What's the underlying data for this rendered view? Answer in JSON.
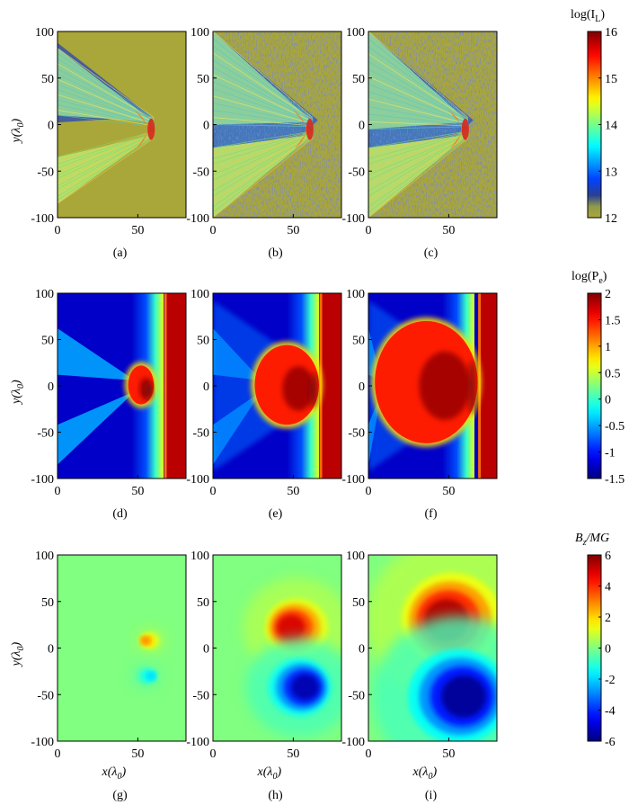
{
  "chart_data": [
    {
      "type": "heatmap",
      "row_label": "log(I_L)",
      "colorbar": {
        "label": "log(I_L)",
        "label_base": "log(I",
        "label_sub": "L",
        "range": [
          12,
          16
        ],
        "ticks": [
          "12",
          "13",
          "14",
          "15",
          "16"
        ],
        "colormap": "jet-with-olive-low"
      },
      "x": {
        "range": [
          0,
          80
        ],
        "ticks": [
          "0",
          "50"
        ],
        "label": ""
      },
      "y": {
        "range": [
          -100,
          100
        ],
        "ticks": [
          "100",
          "50",
          "0",
          "-50",
          "-100"
        ],
        "label": "y(λ0)"
      },
      "panels": [
        {
          "id": "(a)",
          "pattern": "two-beam-cone",
          "tip_x": 60
        },
        {
          "id": "(b)",
          "pattern": "two-beam-cone-speckled",
          "tip_x": 62
        },
        {
          "id": "(c)",
          "pattern": "two-beam-cone-speckled",
          "tip_x": 62
        }
      ]
    },
    {
      "type": "heatmap",
      "row_label": "log(P_e)",
      "colorbar": {
        "label": "log(P_e)",
        "label_base": "log(P",
        "label_sub": "e",
        "range": [
          -1.5,
          2
        ],
        "ticks": [
          "2",
          "1.5",
          "1",
          "0.5",
          "0",
          "-0.5",
          "-1",
          "-1.5"
        ],
        "colormap": "jet"
      },
      "x": {
        "range": [
          0,
          80
        ],
        "ticks": [
          "0",
          "50"
        ],
        "label": ""
      },
      "y": {
        "range": [
          -100,
          100
        ],
        "ticks": [
          "100",
          "50",
          "0",
          "-50",
          "-100"
        ],
        "label": "y(λ0)"
      },
      "panels": [
        {
          "id": "(d)",
          "hot_region_x": [
            44,
            60
          ],
          "hot_region_y": [
            -20,
            22
          ]
        },
        {
          "id": "(e)",
          "hot_region_x": [
            26,
            66
          ],
          "hot_region_y": [
            -42,
            44
          ]
        },
        {
          "id": "(f)",
          "hot_region_x": [
            4,
            68
          ],
          "hot_region_y": [
            -62,
            70
          ]
        }
      ]
    },
    {
      "type": "heatmap",
      "row_label": "B_z/MG",
      "colorbar": {
        "label": "B_z/MG",
        "label_base": "B",
        "label_sub": "z",
        "label_tail": "/MG",
        "range": [
          -6,
          6
        ],
        "ticks": [
          "6",
          "4",
          "2",
          "0",
          "-2",
          "-4",
          "-6"
        ],
        "colormap": "jet"
      },
      "x": {
        "range": [
          0,
          80
        ],
        "ticks": [
          "0",
          "50"
        ],
        "label": "x(λ0)"
      },
      "y": {
        "range": [
          -100,
          100
        ],
        "ticks": [
          "100",
          "50",
          "0",
          "-50",
          "-100"
        ],
        "label": "y(λ0)"
      },
      "panels": [
        {
          "id": "(g)",
          "positive_lobe": {
            "x": 58,
            "y": 8,
            "peak": 3
          },
          "negative_lobe": {
            "x": 55,
            "y": -30,
            "peak": -2
          }
        },
        {
          "id": "(h)",
          "positive_lobe": {
            "x": 52,
            "y": 22,
            "peak": 5
          },
          "negative_lobe": {
            "x": 54,
            "y": -42,
            "peak": -5.5
          }
        },
        {
          "id": "(i)",
          "positive_lobe": {
            "x": 52,
            "y": 30,
            "peak": 5.5
          },
          "negative_lobe": {
            "x": 56,
            "y": -52,
            "peak": -5.8
          }
        }
      ]
    }
  ],
  "axis_labels": {
    "y_base": "y(λ",
    "y_sub": "0",
    "y_tail": ")",
    "x_base": "x(λ",
    "x_sub": "0",
    "x_tail": ")"
  }
}
